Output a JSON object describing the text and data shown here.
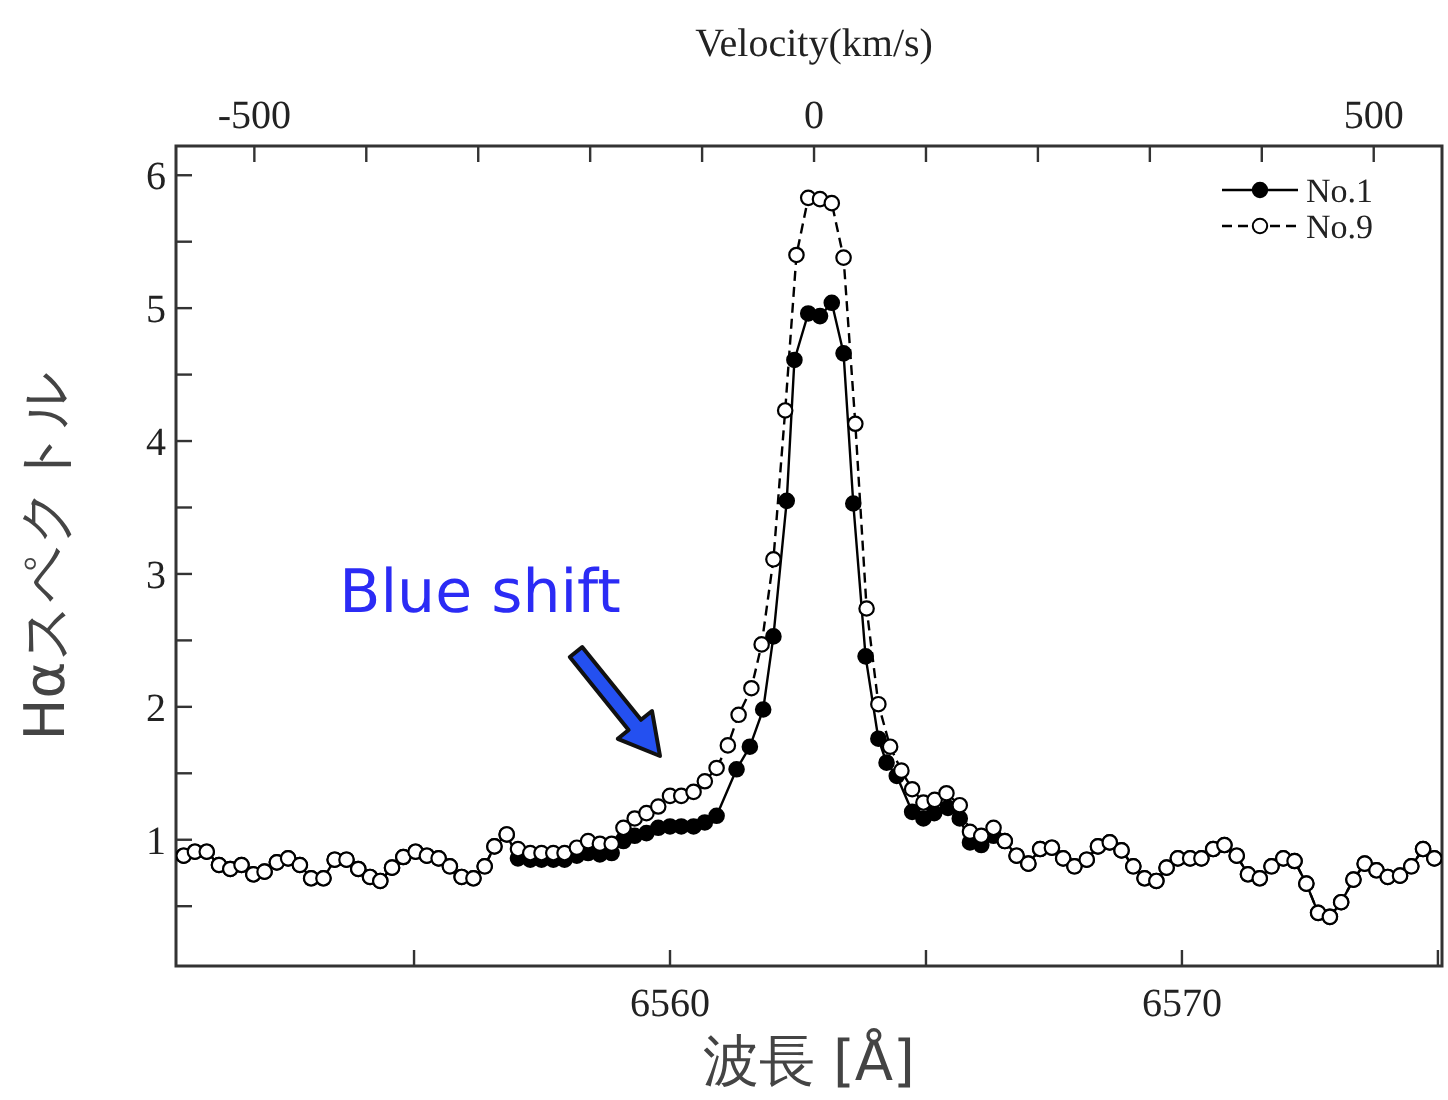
{
  "chart_data": {
    "type": "line",
    "x2label": "Velocity(km/s)",
    "xlabel": "波長 [Å]",
    "ylabel": "Hαスペクトル",
    "xlim": [
      6550.35,
      6575.08
    ],
    "xticks": [
      {
        "value": 6555,
        "label": null
      },
      6560,
      {
        "value": 6565,
        "label": null
      },
      6570,
      {
        "value": 6575,
        "label": null
      }
    ],
    "x2lim": [
      -570,
      561
    ],
    "x2ticks": [
      -500,
      {
        "value": -400,
        "label": null
      },
      {
        "value": -300,
        "label": null
      },
      {
        "value": -200,
        "label": null
      },
      {
        "value": -100,
        "label": null
      },
      0,
      {
        "value": 100,
        "label": null
      },
      {
        "value": 200,
        "label": null
      },
      {
        "value": 300,
        "label": null
      },
      {
        "value": 400,
        "label": null
      },
      500
    ],
    "ylim": [
      0.05,
      6.22
    ],
    "yticks": [
      {
        "value": 0.5,
        "label": null
      },
      1,
      {
        "value": 1.5,
        "label": null
      },
      2,
      {
        "value": 2.5,
        "label": null
      },
      3,
      {
        "value": 3.5,
        "label": null
      },
      4,
      {
        "value": 4.5,
        "label": null
      },
      5,
      {
        "value": 5.5,
        "label": null
      },
      6
    ],
    "legend": "top right",
    "grid": false,
    "marker": "circle",
    "annotations": [
      "Blue shift"
    ],
    "series": [
      {
        "name": "No.1",
        "color": "#000000",
        "line_style": "solid",
        "x": [
          6550.5,
          6550.72,
          6550.95,
          6551.19,
          6551.41,
          6551.63,
          6551.86,
          6552.08,
          6552.32,
          6552.54,
          6552.77,
          6552.99,
          6553.23,
          6553.45,
          6553.68,
          6553.91,
          6554.14,
          6554.34,
          6554.57,
          6554.79,
          6555.03,
          6555.25,
          6555.48,
          6555.7,
          6555.93,
          6556.16,
          6556.38,
          6556.57,
          6556.81,
          6557.03,
          6557.27,
          6557.49,
          6557.72,
          6557.94,
          6558.18,
          6558.4,
          6558.63,
          6558.86,
          6559.09,
          6559.31,
          6559.54,
          6559.77,
          6560.0,
          6560.22,
          6560.46,
          6560.68,
          6560.91,
          6561.3,
          6561.56,
          6561.82,
          6562.02,
          6562.28,
          6562.43,
          6562.7,
          6562.93,
          6563.16,
          6563.39,
          6563.58,
          6563.82,
          6564.07,
          6564.23,
          6564.43,
          6564.73,
          6564.95,
          6565.16,
          6565.43,
          6565.66,
          6565.86,
          6566.08,
          6566.32,
          6566.54,
          6566.77,
          6567.0,
          6567.23,
          6567.46,
          6567.68,
          6567.9,
          6568.14,
          6568.36,
          6568.59,
          6568.82,
          6569.05,
          6569.27,
          6569.5,
          6569.7,
          6569.92,
          6570.16,
          6570.38,
          6570.61,
          6570.83,
          6571.07,
          6571.29,
          6571.52,
          6571.75,
          6571.98,
          6572.2,
          6572.43,
          6572.66,
          6572.89,
          6573.11,
          6573.35,
          6573.57,
          6573.8,
          6574.02,
          6574.26,
          6574.48,
          6574.71,
          6574.93
        ],
        "values": [
          0.88,
          0.91,
          0.91,
          0.81,
          0.78,
          0.81,
          0.74,
          0.76,
          0.83,
          0.86,
          0.81,
          0.71,
          0.71,
          0.85,
          0.85,
          0.78,
          0.72,
          0.69,
          0.79,
          0.87,
          0.91,
          0.88,
          0.86,
          0.8,
          0.72,
          0.71,
          0.8,
          0.95,
          1.04,
          0.86,
          0.85,
          0.85,
          0.85,
          0.85,
          0.88,
          0.9,
          0.89,
          0.9,
          0.99,
          1.03,
          1.05,
          1.09,
          1.1,
          1.1,
          1.1,
          1.13,
          1.18,
          1.53,
          1.7,
          1.98,
          2.53,
          3.55,
          4.61,
          4.96,
          4.94,
          5.04,
          4.66,
          3.53,
          2.38,
          1.76,
          1.58,
          1.48,
          1.21,
          1.16,
          1.2,
          1.24,
          1.16,
          0.98,
          0.96,
          1.03,
          0.99,
          0.88,
          0.82,
          0.93,
          0.94,
          0.86,
          0.8,
          0.85,
          0.95,
          0.98,
          0.92,
          0.8,
          0.71,
          0.69,
          0.79,
          0.86,
          0.86,
          0.86,
          0.93,
          0.96,
          0.88,
          0.74,
          0.71,
          0.8,
          0.86,
          0.84,
          0.67,
          0.45,
          0.42,
          0.53,
          0.7,
          0.82,
          0.77,
          0.72,
          0.73,
          0.8,
          0.93,
          0.86
        ]
      },
      {
        "name": "No.9",
        "color": "#000000",
        "line_style": "dashed",
        "x": [
          6550.5,
          6550.72,
          6550.95,
          6551.19,
          6551.41,
          6551.63,
          6551.86,
          6552.08,
          6552.32,
          6552.54,
          6552.77,
          6552.99,
          6553.23,
          6553.45,
          6553.68,
          6553.91,
          6554.14,
          6554.34,
          6554.57,
          6554.79,
          6555.03,
          6555.25,
          6555.48,
          6555.7,
          6555.93,
          6556.16,
          6556.38,
          6556.57,
          6556.81,
          6557.03,
          6557.27,
          6557.49,
          6557.72,
          6557.94,
          6558.18,
          6558.4,
          6558.63,
          6558.86,
          6559.09,
          6559.31,
          6559.54,
          6559.77,
          6560.0,
          6560.22,
          6560.46,
          6560.68,
          6560.91,
          6561.13,
          6561.34,
          6561.59,
          6561.79,
          6562.02,
          6562.25,
          6562.47,
          6562.7,
          6562.93,
          6563.16,
          6563.39,
          6563.62,
          6563.84,
          6564.07,
          6564.3,
          6564.52,
          6564.73,
          6564.95,
          6565.17,
          6565.4,
          6565.66,
          6565.86,
          6566.08,
          6566.32,
          6566.54,
          6566.77,
          6567.0,
          6567.23,
          6567.46,
          6567.68,
          6567.9,
          6568.14,
          6568.36,
          6568.59,
          6568.82,
          6569.05,
          6569.27,
          6569.5,
          6569.7,
          6569.92,
          6570.16,
          6570.38,
          6570.61,
          6570.83,
          6571.07,
          6571.29,
          6571.52,
          6571.75,
          6571.98,
          6572.2,
          6572.43,
          6572.66,
          6572.89,
          6573.11,
          6573.35,
          6573.57,
          6573.8,
          6574.02,
          6574.26,
          6574.48,
          6574.71,
          6574.93
        ],
        "values": [
          0.88,
          0.91,
          0.91,
          0.81,
          0.78,
          0.81,
          0.74,
          0.76,
          0.83,
          0.86,
          0.81,
          0.71,
          0.71,
          0.85,
          0.85,
          0.78,
          0.72,
          0.69,
          0.79,
          0.87,
          0.91,
          0.88,
          0.86,
          0.8,
          0.72,
          0.71,
          0.8,
          0.95,
          1.04,
          0.93,
          0.9,
          0.9,
          0.9,
          0.9,
          0.94,
          0.99,
          0.97,
          0.97,
          1.09,
          1.16,
          1.2,
          1.25,
          1.33,
          1.33,
          1.36,
          1.44,
          1.54,
          1.71,
          1.94,
          2.14,
          2.47,
          3.11,
          4.23,
          5.4,
          5.83,
          5.82,
          5.79,
          5.38,
          4.13,
          2.74,
          2.02,
          1.7,
          1.52,
          1.38,
          1.28,
          1.3,
          1.35,
          1.26,
          1.06,
          1.03,
          1.09,
          0.99,
          0.88,
          0.82,
          0.93,
          0.94,
          0.86,
          0.8,
          0.85,
          0.95,
          0.98,
          0.92,
          0.8,
          0.71,
          0.69,
          0.79,
          0.86,
          0.86,
          0.86,
          0.93,
          0.96,
          0.88,
          0.74,
          0.71,
          0.8,
          0.86,
          0.84,
          0.67,
          0.45,
          0.42,
          0.53,
          0.7,
          0.82,
          0.77,
          0.72,
          0.73,
          0.8,
          0.93,
          0.86
        ]
      }
    ]
  }
}
